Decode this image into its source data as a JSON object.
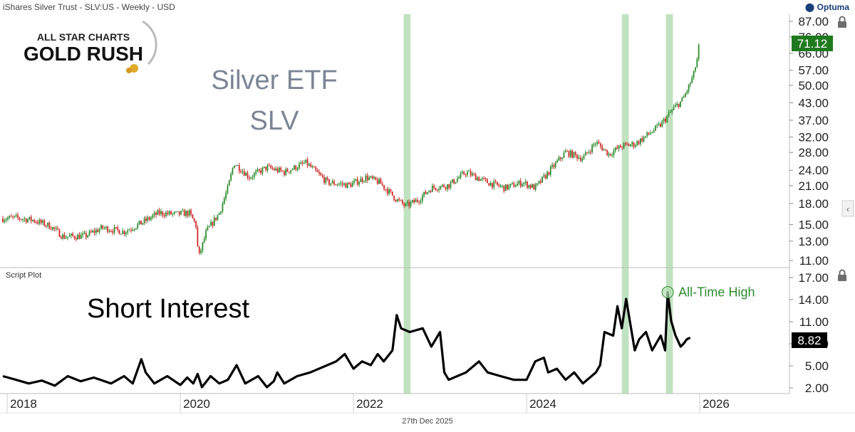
{
  "header": {
    "instrument": "iShares Silver Trust - SLV:US - Weekly - USD",
    "brand": "Optuma",
    "footer_date": "27th Dec 2025",
    "logo_top": "ALL STAR CHARTS",
    "logo_main": "GOLD RUSH"
  },
  "colors": {
    "up": "#2e8b2e",
    "down": "#d12a2a",
    "highlight": "#b5ddb5",
    "price_tag": "#1f7a1f",
    "si_tag": "#000000",
    "annotation": "#2e8b2e"
  },
  "chart_data": [
    {
      "type": "candlestick",
      "title": "Silver ETF",
      "subtitle": "SLV",
      "scale": "log",
      "ylim": [
        10,
        88
      ],
      "y_ticks": [
        11,
        13,
        15,
        18,
        21,
        24,
        28,
        32,
        37,
        43,
        50,
        57,
        66,
        76,
        87
      ],
      "y_tick_labels": [
        "11.00",
        "13.00",
        "15.00",
        "18.00",
        "21.00",
        "24.00",
        "28.00",
        "32.00",
        "37.00",
        "43.00",
        "50.00",
        "57.00",
        "66.00",
        "76.00",
        "87.00"
      ],
      "last_value": 71.12,
      "last_label": "71.12",
      "series_anchors": [
        [
          2017.9,
          15.8
        ],
        [
          2018.1,
          15.9
        ],
        [
          2018.3,
          15.6
        ],
        [
          2018.5,
          14.8
        ],
        [
          2018.65,
          13.5
        ],
        [
          2018.9,
          13.6
        ],
        [
          2019.1,
          14.6
        ],
        [
          2019.35,
          14.1
        ],
        [
          2019.55,
          15.2
        ],
        [
          2019.75,
          16.6
        ],
        [
          2019.95,
          16.4
        ],
        [
          2020.1,
          16.6
        ],
        [
          2020.18,
          15.0
        ],
        [
          2020.21,
          11.2
        ],
        [
          2020.3,
          14.1
        ],
        [
          2020.45,
          16.6
        ],
        [
          2020.55,
          20.6
        ],
        [
          2020.62,
          25.6
        ],
        [
          2020.8,
          22.6
        ],
        [
          2021.0,
          24.6
        ],
        [
          2021.2,
          23.6
        ],
        [
          2021.45,
          25.6
        ],
        [
          2021.7,
          21.6
        ],
        [
          2021.95,
          21.1
        ],
        [
          2022.15,
          22.6
        ],
        [
          2022.3,
          21.6
        ],
        [
          2022.5,
          18.6
        ],
        [
          2022.6,
          17.6
        ],
        [
          2022.75,
          18.6
        ],
        [
          2022.9,
          20.6
        ],
        [
          2023.1,
          21.1
        ],
        [
          2023.3,
          23.6
        ],
        [
          2023.55,
          21.6
        ],
        [
          2023.75,
          20.6
        ],
        [
          2023.95,
          21.6
        ],
        [
          2024.1,
          20.6
        ],
        [
          2024.3,
          24.6
        ],
        [
          2024.45,
          28.1
        ],
        [
          2024.65,
          26.6
        ],
        [
          2024.8,
          30.6
        ],
        [
          2024.95,
          27.6
        ],
        [
          2025.1,
          29.6
        ],
        [
          2025.25,
          30.1
        ],
        [
          2025.4,
          32.6
        ],
        [
          2025.55,
          35.6
        ],
        [
          2025.7,
          41.0
        ],
        [
          2025.8,
          44.0
        ],
        [
          2025.88,
          50.0
        ],
        [
          2025.93,
          55.0
        ],
        [
          2025.985,
          66.0
        ],
        [
          2025.99,
          71.12
        ]
      ],
      "x_range": [
        2017.95,
        2025.995
      ]
    },
    {
      "type": "line",
      "title": "Short Interest",
      "pane_label": "Script Plot",
      "ylim": [
        1.5,
        18.2
      ],
      "y_ticks": [
        2,
        5,
        8,
        11,
        14,
        17
      ],
      "y_tick_labels": [
        "2.00",
        "5.00",
        "8.00",
        "11.00",
        "14.00",
        "17.00"
      ],
      "last_value": 8.82,
      "last_label": "8.82",
      "annotation": "All-Time High",
      "annotation_point": [
        2025.63,
        15.0
      ],
      "x": [
        2017.95,
        2018.1,
        2018.25,
        2018.4,
        2018.55,
        2018.7,
        2018.85,
        2019.0,
        2019.2,
        2019.35,
        2019.45,
        2019.55,
        2019.6,
        2019.7,
        2019.85,
        2020.0,
        2020.08,
        2020.15,
        2020.2,
        2020.25,
        2020.35,
        2020.45,
        2020.55,
        2020.65,
        2020.75,
        2020.9,
        2021.0,
        2021.08,
        2021.12,
        2021.2,
        2021.35,
        2021.5,
        2021.7,
        2021.8,
        2021.9,
        2022.0,
        2022.1,
        2022.2,
        2022.28,
        2022.35,
        2022.45,
        2022.5,
        2022.55,
        2022.65,
        2022.8,
        2022.9,
        2023.0,
        2023.05,
        2023.1,
        2023.3,
        2023.45,
        2023.55,
        2023.7,
        2023.85,
        2024.0,
        2024.1,
        2024.2,
        2024.25,
        2024.35,
        2024.45,
        2024.55,
        2024.65,
        2024.75,
        2024.8,
        2024.85,
        2024.9,
        2025.0,
        2025.05,
        2025.1,
        2025.15,
        2025.25,
        2025.3,
        2025.38,
        2025.45,
        2025.55,
        2025.6,
        2025.63,
        2025.67,
        2025.72,
        2025.78,
        2025.82,
        2025.85,
        2025.89
      ],
      "values": [
        3.6,
        3.1,
        2.6,
        3.0,
        2.3,
        3.6,
        2.9,
        3.4,
        2.6,
        3.6,
        2.6,
        5.9,
        4.1,
        2.6,
        3.6,
        2.4,
        3.4,
        2.6,
        3.9,
        2.1,
        3.6,
        2.6,
        3.1,
        5.1,
        2.6,
        3.6,
        2.1,
        2.9,
        4.1,
        2.6,
        3.6,
        4.1,
        5.1,
        5.6,
        6.6,
        4.6,
        5.6,
        5.1,
        6.6,
        5.6,
        7.1,
        11.9,
        10.1,
        9.6,
        10.1,
        7.6,
        9.6,
        4.1,
        3.1,
        4.1,
        5.6,
        4.1,
        3.6,
        3.1,
        3.1,
        5.6,
        6.1,
        4.1,
        4.6,
        3.1,
        4.1,
        2.6,
        3.6,
        4.1,
        5.1,
        9.6,
        9.1,
        13.1,
        10.1,
        14.1,
        7.1,
        8.6,
        9.6,
        7.1,
        9.1,
        7.1,
        15.0,
        11.1,
        9.1,
        7.6,
        8.1,
        8.6,
        8.82
      ]
    }
  ],
  "x_axis": {
    "tick_labels": [
      "2018",
      "2020",
      "2022",
      "2024",
      "2026"
    ],
    "tick_values": [
      2018,
      2020,
      2022,
      2024,
      2026
    ],
    "highlight_bands": [
      [
        2022.58,
        2022.66
      ],
      [
        2025.1,
        2025.18
      ],
      [
        2025.61,
        2025.69
      ]
    ]
  }
}
